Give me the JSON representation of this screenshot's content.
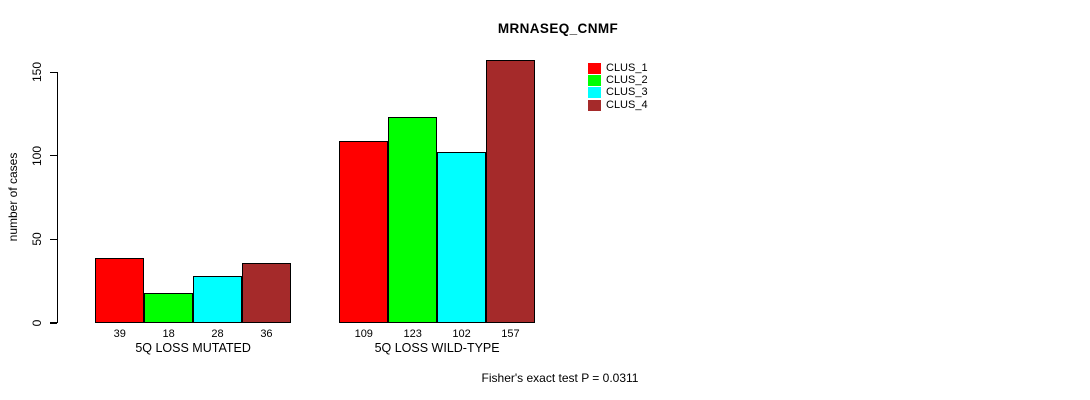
{
  "chart_data": {
    "type": "bar",
    "title": "MRNASEQ_CNMF",
    "xlabel": "",
    "ylabel": "number of cases",
    "ylim": [
      0,
      157
    ],
    "yticks": [
      0,
      50,
      100,
      150
    ],
    "grid": false,
    "legend_position": "top-right",
    "categories": [
      "5Q LOSS MUTATED",
      "5Q LOSS WILD-TYPE"
    ],
    "series": [
      {
        "name": "CLUS_1",
        "color": "#FF0000",
        "values": [
          39,
          109
        ]
      },
      {
        "name": "CLUS_2",
        "color": "#00FF00",
        "values": [
          18,
          123
        ]
      },
      {
        "name": "CLUS_3",
        "color": "#00FFFF",
        "values": [
          28,
          102
        ]
      },
      {
        "name": "CLUS_4",
        "color": "#A52A2A",
        "values": [
          36,
          157
        ]
      }
    ],
    "bar_value_labels": [
      [
        39,
        18,
        28,
        36
      ],
      [
        109,
        123,
        102,
        157
      ]
    ],
    "annotation": "Fisher's exact test P = 0.0311"
  }
}
